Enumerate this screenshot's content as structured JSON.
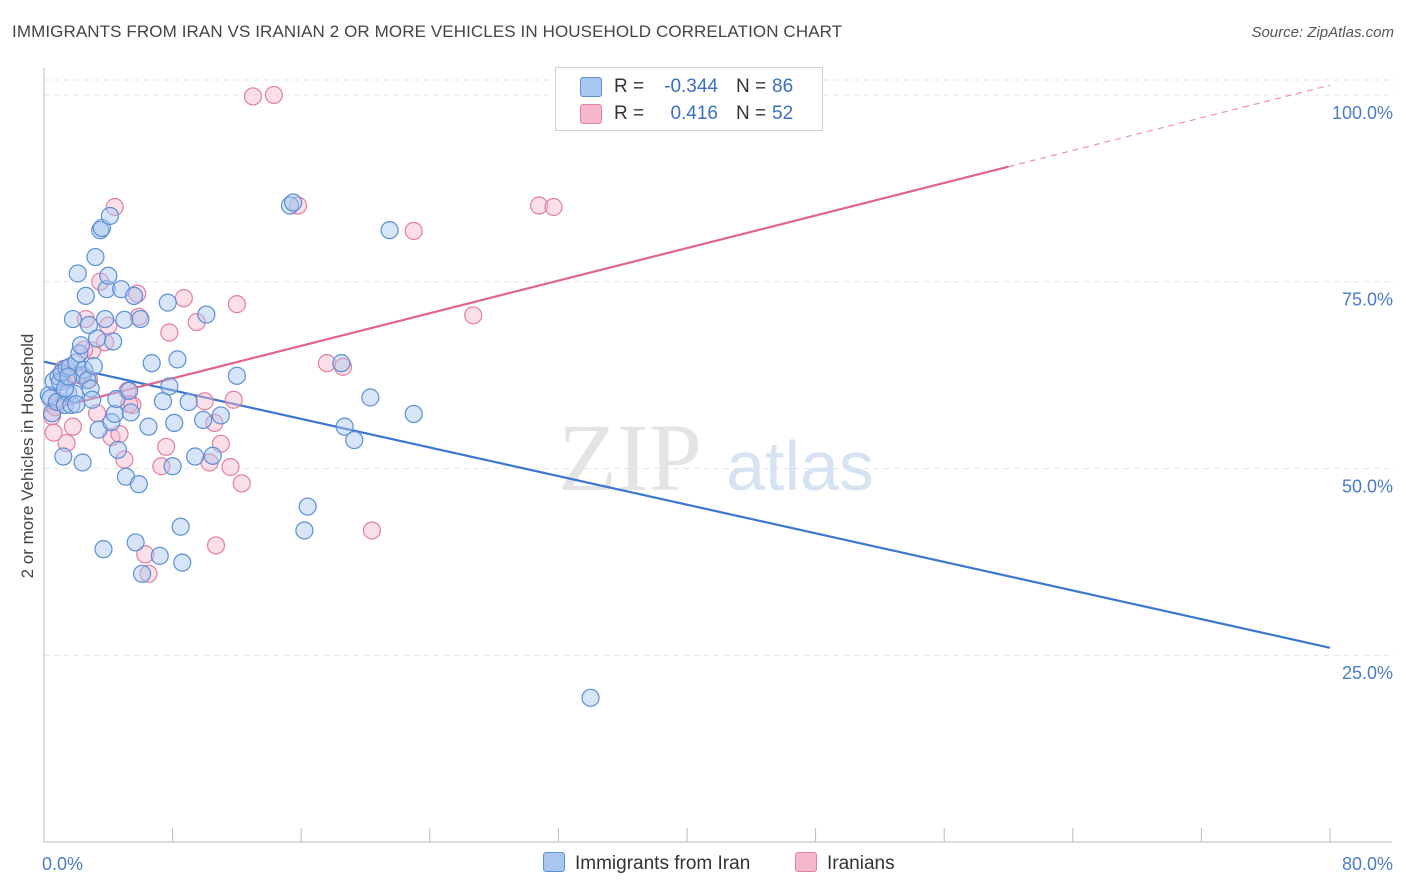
{
  "header": {
    "title": "IMMIGRANTS FROM IRAN VS IRANIAN 2 OR MORE VEHICLES IN HOUSEHOLD CORRELATION CHART",
    "source": "Source: ZipAtlas.com"
  },
  "watermark": {
    "zip": "ZIP",
    "atlas": "atlas"
  },
  "legend": {
    "rows": [
      {
        "r_label": "R =",
        "r_value": "-0.344",
        "n_label": "N =",
        "n_value": "86",
        "color": "#a9c6ef",
        "stroke": "#5b8fd6"
      },
      {
        "r_label": "R =",
        "r_value": "0.416",
        "n_label": "N =",
        "n_value": "52",
        "color": "#f6b9cc",
        "stroke": "#e27fa0"
      }
    ],
    "bottom": [
      {
        "label": "Immigrants from Iran",
        "color": "#a9c6ef",
        "stroke": "#5b8fd6"
      },
      {
        "label": "Iranians",
        "color": "#f6b9cc",
        "stroke": "#e27fa0"
      }
    ]
  },
  "chart_data": {
    "type": "scatter",
    "title": "IMMIGRANTS FROM IRAN VS IRANIAN 2 OR MORE VEHICLES IN HOUSEHOLD CORRELATION CHART",
    "xlabel": "",
    "ylabel": "2 or more Vehicles in Household",
    "xlim": [
      0,
      80
    ],
    "ylim": [
      0,
      102
    ],
    "x_tick_labels": [
      "0.0%",
      "80.0%"
    ],
    "y_tick_values": [
      25,
      50,
      75,
      100
    ],
    "y_tick_labels": [
      "25.0%",
      "50.0%",
      "75.0%",
      "100.0%"
    ],
    "grid": true,
    "series": [
      {
        "name": "Immigrants from Iran",
        "color": "#5b8fd6",
        "fill": "#a9c6ef",
        "trend": {
          "x0": 0,
          "y0": 64.3,
          "x1": 80,
          "y1": 26.0,
          "color": "#3a78d0"
        },
        "points": [
          [
            0.3,
            59.8
          ],
          [
            0.4,
            59.4
          ],
          [
            0.5,
            57.4
          ],
          [
            0.6,
            61.7
          ],
          [
            0.8,
            58.9
          ],
          [
            0.9,
            62.3
          ],
          [
            1.0,
            61.6
          ],
          [
            1.1,
            62.8
          ],
          [
            1.2,
            51.6
          ],
          [
            1.3,
            58.5
          ],
          [
            1.4,
            63.4
          ],
          [
            1.5,
            60.1
          ],
          [
            1.6,
            63.6
          ],
          [
            1.7,
            58.5
          ],
          [
            1.8,
            70.0
          ],
          [
            1.9,
            60.0
          ],
          [
            2.0,
            64.2
          ],
          [
            2.1,
            76.1
          ],
          [
            2.2,
            65.4
          ],
          [
            2.3,
            66.5
          ],
          [
            2.4,
            62.5
          ],
          [
            2.5,
            63.2
          ],
          [
            2.6,
            73.1
          ],
          [
            2.7,
            61.8
          ],
          [
            2.8,
            69.2
          ],
          [
            2.9,
            60.7
          ],
          [
            3.0,
            59.2
          ],
          [
            3.1,
            63.7
          ],
          [
            3.2,
            78.3
          ],
          [
            3.3,
            67.4
          ],
          [
            3.4,
            55.2
          ],
          [
            3.5,
            81.9
          ],
          [
            3.6,
            82.2
          ],
          [
            3.8,
            70.0
          ],
          [
            3.9,
            74.0
          ],
          [
            4.0,
            75.8
          ],
          [
            4.1,
            83.8
          ],
          [
            4.2,
            56.2
          ],
          [
            4.3,
            67.0
          ],
          [
            4.4,
            57.3
          ],
          [
            4.5,
            59.3
          ],
          [
            4.6,
            52.5
          ],
          [
            4.8,
            74.0
          ],
          [
            5.0,
            69.9
          ],
          [
            5.1,
            48.9
          ],
          [
            5.3,
            60.4
          ],
          [
            5.4,
            57.5
          ],
          [
            5.6,
            73.1
          ],
          [
            5.7,
            40.1
          ],
          [
            5.9,
            47.9
          ],
          [
            6.0,
            70.0
          ],
          [
            6.1,
            35.9
          ],
          [
            6.5,
            55.6
          ],
          [
            6.7,
            64.1
          ],
          [
            7.2,
            38.3
          ],
          [
            7.4,
            59.0
          ],
          [
            7.7,
            72.2
          ],
          [
            7.8,
            61.0
          ],
          [
            8.0,
            50.3
          ],
          [
            8.1,
            56.1
          ],
          [
            8.3,
            64.6
          ],
          [
            8.5,
            42.2
          ],
          [
            8.6,
            37.4
          ],
          [
            9.0,
            58.9
          ],
          [
            9.4,
            51.6
          ],
          [
            9.9,
            56.5
          ],
          [
            10.1,
            70.6
          ],
          [
            10.5,
            51.7
          ],
          [
            11.0,
            57.1
          ],
          [
            15.3,
            85.2
          ],
          [
            15.5,
            85.6
          ],
          [
            16.2,
            41.7
          ],
          [
            16.4,
            44.9
          ],
          [
            18.5,
            64.1
          ],
          [
            18.7,
            55.6
          ],
          [
            19.3,
            53.8
          ],
          [
            20.3,
            59.5
          ],
          [
            21.5,
            81.9
          ],
          [
            23.0,
            57.3
          ],
          [
            34.0,
            19.3
          ],
          [
            1.3,
            60.7
          ],
          [
            2.4,
            50.8
          ],
          [
            3.7,
            39.2
          ],
          [
            12.0,
            62.4
          ],
          [
            1.5,
            62.3
          ],
          [
            2.0,
            58.6
          ]
        ]
      },
      {
        "name": "Iranians",
        "color": "#e27fa0",
        "fill": "#f6b9cc",
        "trend": {
          "x0": 0,
          "y0": 57.7,
          "x1": 60,
          "y1": 90.4,
          "dash_x1": 80,
          "dash_y1": 101.3,
          "color": "#e0648d"
        },
        "points": [
          [
            0.5,
            57.0
          ],
          [
            0.7,
            58.2
          ],
          [
            0.9,
            59.0
          ],
          [
            1.2,
            63.3
          ],
          [
            1.4,
            53.4
          ],
          [
            1.5,
            62.0
          ],
          [
            1.8,
            55.6
          ],
          [
            2.1,
            62.5
          ],
          [
            2.6,
            70.0
          ],
          [
            2.8,
            61.9
          ],
          [
            3.0,
            65.8
          ],
          [
            3.3,
            57.4
          ],
          [
            3.5,
            75.0
          ],
          [
            3.8,
            66.9
          ],
          [
            4.0,
            69.1
          ],
          [
            4.2,
            54.2
          ],
          [
            4.4,
            85.0
          ],
          [
            4.7,
            54.6
          ],
          [
            5.0,
            51.2
          ],
          [
            5.2,
            60.4
          ],
          [
            5.5,
            58.5
          ],
          [
            5.8,
            73.4
          ],
          [
            5.9,
            70.3
          ],
          [
            6.3,
            38.5
          ],
          [
            6.5,
            35.9
          ],
          [
            7.3,
            50.3
          ],
          [
            7.6,
            52.9
          ],
          [
            7.8,
            68.2
          ],
          [
            8.7,
            72.8
          ],
          [
            9.5,
            69.6
          ],
          [
            10.0,
            59.0
          ],
          [
            10.3,
            50.8
          ],
          [
            10.7,
            39.7
          ],
          [
            11.0,
            53.3
          ],
          [
            11.6,
            50.2
          ],
          [
            11.8,
            59.2
          ],
          [
            12.0,
            72.0
          ],
          [
            12.3,
            48.0
          ],
          [
            15.8,
            85.2
          ],
          [
            17.6,
            64.1
          ],
          [
            20.4,
            41.7
          ],
          [
            18.6,
            63.6
          ],
          [
            23.0,
            81.8
          ],
          [
            26.7,
            70.5
          ],
          [
            30.8,
            85.2
          ],
          [
            31.7,
            85.0
          ],
          [
            10.6,
            56.1
          ],
          [
            5.3,
            58.6
          ],
          [
            14.3,
            100.0
          ],
          [
            13.0,
            99.8
          ],
          [
            0.6,
            54.8
          ],
          [
            2.5,
            65.9
          ]
        ]
      }
    ]
  }
}
